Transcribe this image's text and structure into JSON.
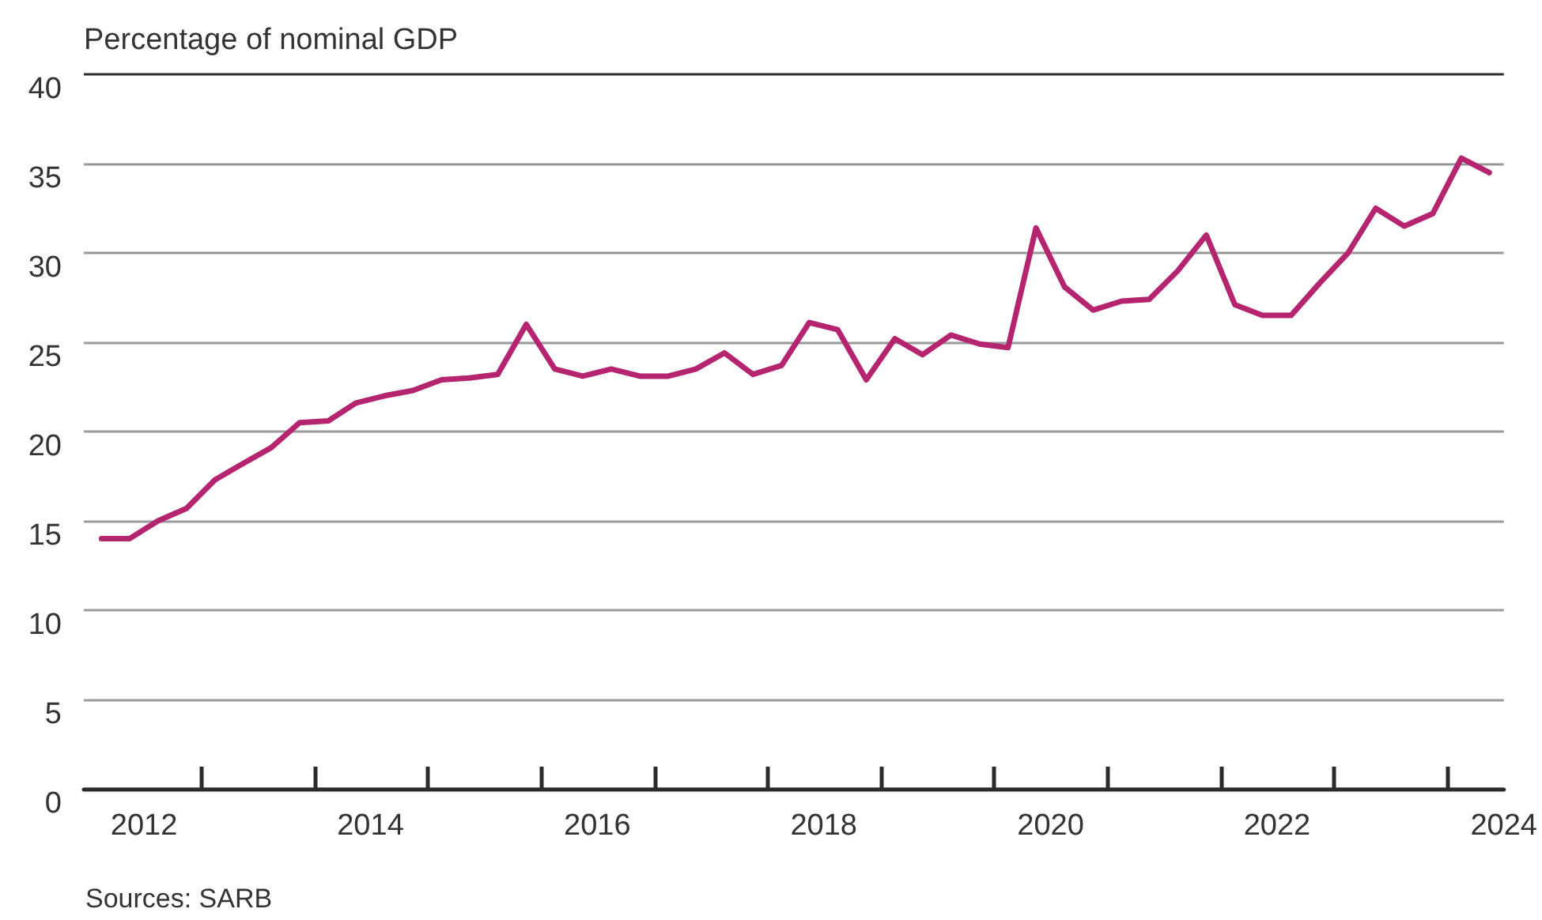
{
  "chart_data": {
    "type": "line",
    "ylabel": "Percentage of nominal GDP",
    "annotations": [
      "Sources: SARB"
    ],
    "x": [
      "2012-02-15",
      "2012-05-15",
      "2012-08-15",
      "2012-11-15",
      "2013-02-15",
      "2013-05-15",
      "2013-08-15",
      "2013-11-15",
      "2014-02-15",
      "2014-05-15",
      "2014-08-15",
      "2014-11-15",
      "2015-02-15",
      "2015-05-15",
      "2015-08-15",
      "2015-11-15",
      "2016-02-15",
      "2016-05-15",
      "2016-08-15",
      "2016-11-15",
      "2017-02-15",
      "2017-05-15",
      "2017-08-15",
      "2017-11-15",
      "2018-02-15",
      "2018-05-15",
      "2018-08-15",
      "2018-11-15",
      "2019-02-15",
      "2019-05-15",
      "2019-08-15",
      "2019-11-15",
      "2020-02-15",
      "2020-05-15",
      "2020-08-15",
      "2020-11-15",
      "2021-02-15",
      "2021-05-15",
      "2021-08-15",
      "2021-11-15",
      "2022-02-15",
      "2022-05-15",
      "2022-08-15",
      "2022-11-15",
      "2023-02-15",
      "2023-05-15",
      "2023-08-15",
      "2023-11-15",
      "2024-02-15",
      "2024-05-15"
    ],
    "series": [
      {
        "color": "#b5246e",
        "values": [
          14.0,
          14.0,
          15.0,
          15.7,
          17.3,
          18.2,
          19.1,
          20.5,
          20.6,
          21.6,
          22.0,
          22.3,
          22.9,
          23.0,
          23.2,
          26.0,
          23.5,
          23.1,
          23.5,
          23.1,
          23.1,
          23.5,
          24.4,
          23.2,
          23.7,
          26.1,
          25.7,
          22.9,
          25.2,
          24.3,
          25.4,
          24.9,
          24.7,
          31.4,
          28.1,
          26.8,
          27.3,
          27.4,
          29.0,
          31.0,
          27.1,
          26.5,
          26.5,
          28.3,
          30.0,
          32.5,
          31.5,
          32.2,
          35.3,
          34.5
        ]
      }
    ],
    "xlim": [
      "2011-12-20",
      "2024-07-01"
    ],
    "xticks": [
      {
        "value": "2012-07-01",
        "label": "2012"
      },
      {
        "value": "2013-01-01",
        "label": null
      },
      {
        "value": "2014-01-01",
        "label": null
      },
      {
        "value": "2014-07-01",
        "label": "2014"
      },
      {
        "value": "2015-01-01",
        "label": null
      },
      {
        "value": "2016-01-01",
        "label": null
      },
      {
        "value": "2016-07-01",
        "label": "2016"
      },
      {
        "value": "2017-01-01",
        "label": null
      },
      {
        "value": "2018-01-01",
        "label": null
      },
      {
        "value": "2018-07-01",
        "label": "2018"
      },
      {
        "value": "2019-01-01",
        "label": null
      },
      {
        "value": "2020-01-01",
        "label": null
      },
      {
        "value": "2020-07-01",
        "label": "2020"
      },
      {
        "value": "2021-01-01",
        "label": null
      },
      {
        "value": "2022-01-01",
        "label": null
      },
      {
        "value": "2022-07-01",
        "label": "2022"
      },
      {
        "value": "2023-01-01",
        "label": null
      },
      {
        "value": "2024-01-01",
        "label": null
      },
      {
        "value": "2024-07-01",
        "label": "2024"
      }
    ],
    "ylim": [
      0,
      40
    ],
    "yticks": [
      0,
      5,
      10,
      15,
      20,
      25,
      30,
      35,
      40
    ],
    "grid": "y",
    "marker": "none",
    "line_style": "solid"
  }
}
